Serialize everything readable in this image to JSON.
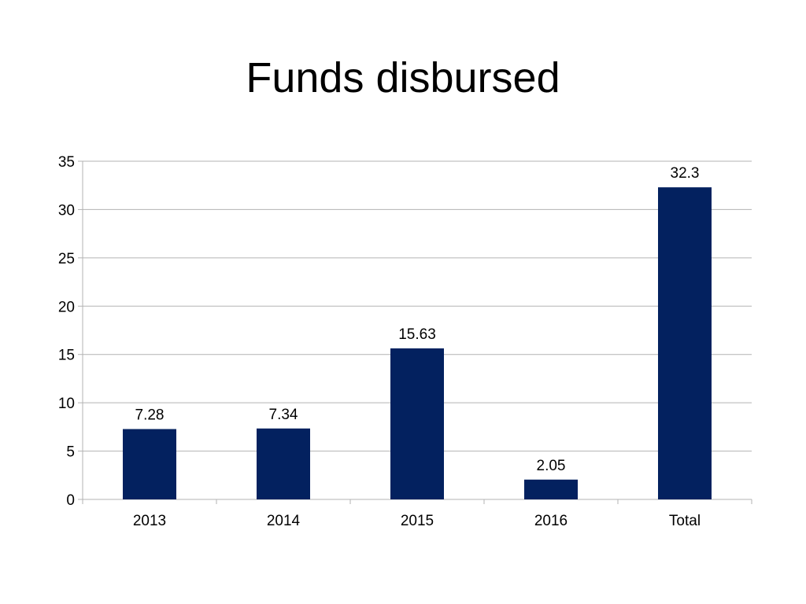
{
  "slide": {
    "title": "Funds disbursed"
  },
  "chart_data": {
    "type": "bar",
    "categories": [
      "2013",
      "2014",
      "2015",
      "2016",
      "Total"
    ],
    "values": [
      7.28,
      7.34,
      15.63,
      2.05,
      32.3
    ],
    "data_labels": [
      "7.28",
      "7.34",
      "15.63",
      "2.05",
      "32.3"
    ],
    "ylim": [
      0,
      35
    ],
    "yticks": [
      0,
      5,
      10,
      15,
      20,
      25,
      30,
      35
    ],
    "grid": true,
    "legend": "none",
    "bar_color": "#03215F"
  }
}
